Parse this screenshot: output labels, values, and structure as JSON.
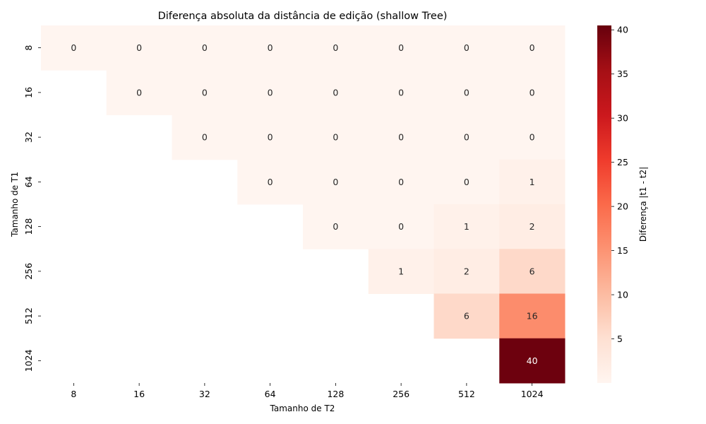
{
  "chart_data": {
    "type": "heatmap",
    "title": "Diferença absoluta da distância de edição (shallow Tree)",
    "xlabel": "Tamanho de T2",
    "ylabel": "Tamanho de T1",
    "x_categories": [
      "8",
      "16",
      "32",
      "64",
      "128",
      "256",
      "512",
      "1024"
    ],
    "y_categories": [
      "8",
      "16",
      "32",
      "64",
      "128",
      "256",
      "512",
      "1024"
    ],
    "values": [
      [
        0,
        0,
        0,
        0,
        0,
        0,
        0,
        0
      ],
      [
        null,
        0,
        0,
        0,
        0,
        0,
        0,
        0
      ],
      [
        null,
        null,
        0,
        0,
        0,
        0,
        0,
        0
      ],
      [
        null,
        null,
        null,
        0,
        0,
        0,
        0,
        1
      ],
      [
        null,
        null,
        null,
        null,
        0,
        0,
        1,
        2
      ],
      [
        null,
        null,
        null,
        null,
        null,
        1,
        2,
        6
      ],
      [
        null,
        null,
        null,
        null,
        null,
        null,
        6,
        16
      ],
      [
        null,
        null,
        null,
        null,
        null,
        null,
        null,
        40
      ]
    ],
    "colormap": "Reds",
    "vmin": 0,
    "vmax": 40.5,
    "colorbar": {
      "label": "Diferença |t1 - t2|",
      "ticks": [
        5,
        10,
        15,
        20,
        25,
        30,
        35,
        40
      ]
    }
  }
}
